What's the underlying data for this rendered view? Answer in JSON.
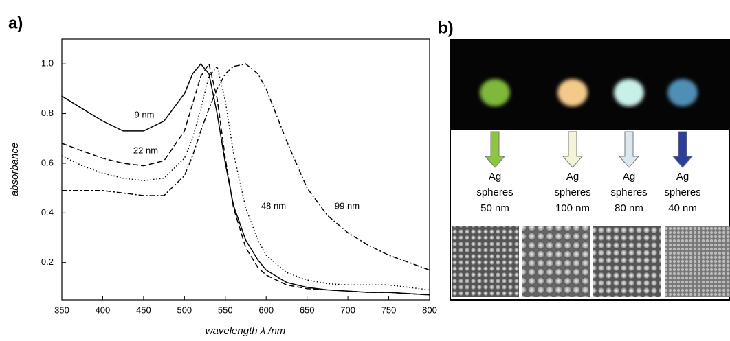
{
  "chart_data": {
    "type": "line",
    "panel_label": "a)",
    "x_label": "wavelength λ /nm",
    "y_label": "absorbance",
    "x": [
      350,
      375,
      400,
      425,
      450,
      475,
      500,
      510,
      520,
      530,
      540,
      550,
      560,
      575,
      590,
      600,
      625,
      650,
      675,
      700,
      725,
      750,
      775,
      800
    ],
    "series": [
      {
        "name": "9 nm",
        "color": "#000000",
        "dash": "solid",
        "values": [
          0.87,
          0.82,
          0.77,
          0.73,
          0.73,
          0.77,
          0.88,
          0.96,
          1.0,
          0.96,
          0.8,
          0.6,
          0.43,
          0.29,
          0.21,
          0.17,
          0.12,
          0.1,
          0.09,
          0.085,
          0.08,
          0.08,
          0.075,
          0.07
        ]
      },
      {
        "name": "22 nm",
        "color": "#000000",
        "dash": "dashed",
        "values": [
          0.68,
          0.65,
          0.62,
          0.6,
          0.59,
          0.61,
          0.73,
          0.84,
          0.95,
          1.0,
          0.86,
          0.62,
          0.42,
          0.26,
          0.18,
          0.15,
          0.11,
          0.095,
          0.09,
          0.085,
          0.08,
          0.08,
          0.075,
          0.07
        ]
      },
      {
        "name": "48 nm",
        "color": "#000000",
        "dash": "dotted",
        "values": [
          0.63,
          0.59,
          0.56,
          0.54,
          0.53,
          0.54,
          0.62,
          0.7,
          0.82,
          0.95,
          0.99,
          0.85,
          0.64,
          0.42,
          0.29,
          0.23,
          0.16,
          0.13,
          0.115,
          0.11,
          0.11,
          0.11,
          0.1,
          0.09
        ]
      },
      {
        "name": "99 nm",
        "color": "#000000",
        "dash": "dashdot",
        "values": [
          0.49,
          0.49,
          0.49,
          0.48,
          0.47,
          0.47,
          0.55,
          0.63,
          0.73,
          0.82,
          0.9,
          0.96,
          0.99,
          1.0,
          0.96,
          0.9,
          0.69,
          0.5,
          0.39,
          0.32,
          0.27,
          0.23,
          0.2,
          0.17
        ]
      }
    ],
    "xlim": [
      350,
      800
    ],
    "xticks": [
      350,
      400,
      450,
      500,
      550,
      600,
      650,
      700,
      750,
      800
    ],
    "ylim": [
      0.05,
      1.1
    ],
    "yticks": [
      0.2,
      0.4,
      0.6,
      0.8,
      {
        "value": 1,
        "label": "1.0"
      }
    ]
  },
  "panel_b": {
    "panel_label": "b)",
    "samples": [
      {
        "lines": [
          "Ag",
          "spheres",
          "50 nm"
        ],
        "glow_color": "#7fb83a",
        "arrow_color": "#8cc63f"
      },
      {
        "lines": [
          "Ag",
          "spheres",
          "100 nm"
        ],
        "glow_color": "#f5c98a",
        "arrow_color": "#f4f4d8"
      },
      {
        "lines": [
          "Ag",
          "spheres",
          "80 nm"
        ],
        "glow_color": "#c8f0e8",
        "arrow_color": "#dce8f0"
      },
      {
        "lines": [
          "Ag",
          "spheres",
          "40 nm"
        ],
        "glow_color": "#4f8fb5",
        "arrow_color": "#2c3f9a"
      }
    ]
  }
}
